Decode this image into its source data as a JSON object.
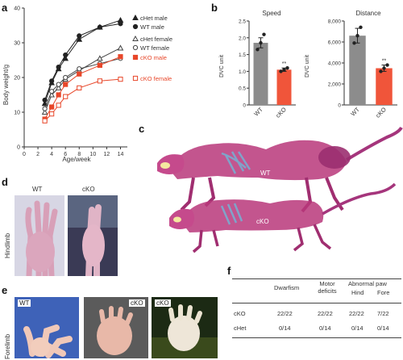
{
  "panels": {
    "a": "a",
    "b": "b",
    "c": "c",
    "d": "d",
    "e": "e",
    "f": "f"
  },
  "chart_data": [
    {
      "type": "line",
      "xlabel": "Age/week",
      "ylabel": "Body weight/g",
      "xlim": [
        0,
        15
      ],
      "ylim": [
        0,
        40
      ],
      "xticks": [
        0,
        2,
        4,
        6,
        8,
        10,
        12,
        14
      ],
      "yticks": [
        0,
        10,
        20,
        30,
        40
      ],
      "legend_placement": "right",
      "series": [
        {
          "name": "cHet male",
          "color": "#222222",
          "marker": "triangle-filled",
          "x": [
            3,
            4,
            5,
            6,
            8,
            11,
            14
          ],
          "y": [
            12.5,
            18.5,
            22.5,
            25.5,
            31,
            34.5,
            36.5
          ]
        },
        {
          "name": "WT male",
          "color": "#222222",
          "marker": "circle-filled",
          "x": [
            3,
            4,
            5,
            6,
            8,
            11,
            14
          ],
          "y": [
            13.5,
            19,
            23,
            26.5,
            32,
            34.5,
            35.5
          ]
        },
        {
          "name": "cHet female",
          "color": "#444444",
          "marker": "triangle-open",
          "x": [
            3,
            4,
            5,
            6,
            8,
            11,
            14
          ],
          "y": [
            10,
            15,
            17,
            19.5,
            22,
            25.5,
            28.5
          ]
        },
        {
          "name": "WT female",
          "color": "#444444",
          "marker": "circle-open",
          "x": [
            3,
            4,
            5,
            6,
            8,
            11,
            14
          ],
          "y": [
            11,
            16,
            18,
            20,
            22.5,
            24,
            25.5
          ]
        },
        {
          "name": "cKO male",
          "color": "#e8472a",
          "marker": "square-filled",
          "x": [
            3,
            4,
            5,
            6,
            8,
            11,
            14
          ],
          "y": [
            8,
            11.5,
            15,
            18,
            21,
            23.5,
            26
          ]
        },
        {
          "name": "cKO female",
          "color": "#e8472a",
          "marker": "square-open",
          "x": [
            3,
            4,
            5,
            6,
            8,
            11,
            14
          ],
          "y": [
            7.5,
            9.5,
            12,
            14.5,
            17,
            19,
            19.5
          ]
        }
      ]
    },
    {
      "type": "bar",
      "title": "Speed",
      "ylabel": "DVC unit",
      "categories": [
        "WT",
        "cKO"
      ],
      "values": [
        1.85,
        1.05
      ],
      "errors": [
        0.15,
        0.05
      ],
      "colors": [
        "#8c8c8c",
        "#f0553a"
      ],
      "points": [
        [
          1.65,
          1.85,
          2.1
        ],
        [
          1.0,
          1.05,
          1.1
        ]
      ],
      "annotations": [
        "",
        "**"
      ],
      "ylim": [
        0,
        2.5
      ],
      "yticks": [
        "0",
        "0.5",
        "1.0",
        "1.5",
        "2.0",
        "2.5"
      ]
    },
    {
      "type": "bar",
      "title": "Distance",
      "ylabel": "DVC unit",
      "categories": [
        "WT",
        "cKO"
      ],
      "values": [
        6600,
        3500
      ],
      "errors": [
        700,
        300
      ],
      "colors": [
        "#8c8c8c",
        "#f0553a"
      ],
      "points": [
        [
          5900,
          6600,
          7400
        ],
        [
          3200,
          3500,
          3800
        ]
      ],
      "annotations": [
        "",
        "**"
      ],
      "ylim": [
        0,
        8000
      ],
      "yticks": [
        "0",
        "2,000",
        "4,000",
        "6,000",
        "8,000"
      ]
    }
  ],
  "skeleton": {
    "label_wt": "WT",
    "label_cko": "cKO"
  },
  "hindlimb": {
    "side_label": "Hindlimb",
    "label_wt": "WT",
    "label_cko": "cKO"
  },
  "forelimb": {
    "side_label": "Forelimb",
    "label_wt": "WT",
    "label_cko_1": "cKO",
    "label_cko_2": "cKO"
  },
  "table_f": {
    "headers": {
      "dwarfism": "Dwarfism",
      "motor_line1": "Motor",
      "motor_line2": "deficits",
      "abnormal": "Abnormal paw",
      "hind": "Hind",
      "fore": "Fore"
    },
    "rows": [
      {
        "label": "cKO",
        "dwarfism": "22/22",
        "motor": "22/22",
        "hind": "22/22",
        "fore": "7/22"
      },
      {
        "label": "cHet",
        "dwarfism": "0/14",
        "motor": "0/14",
        "hind": "0/14",
        "fore": "0/14"
      }
    ]
  }
}
